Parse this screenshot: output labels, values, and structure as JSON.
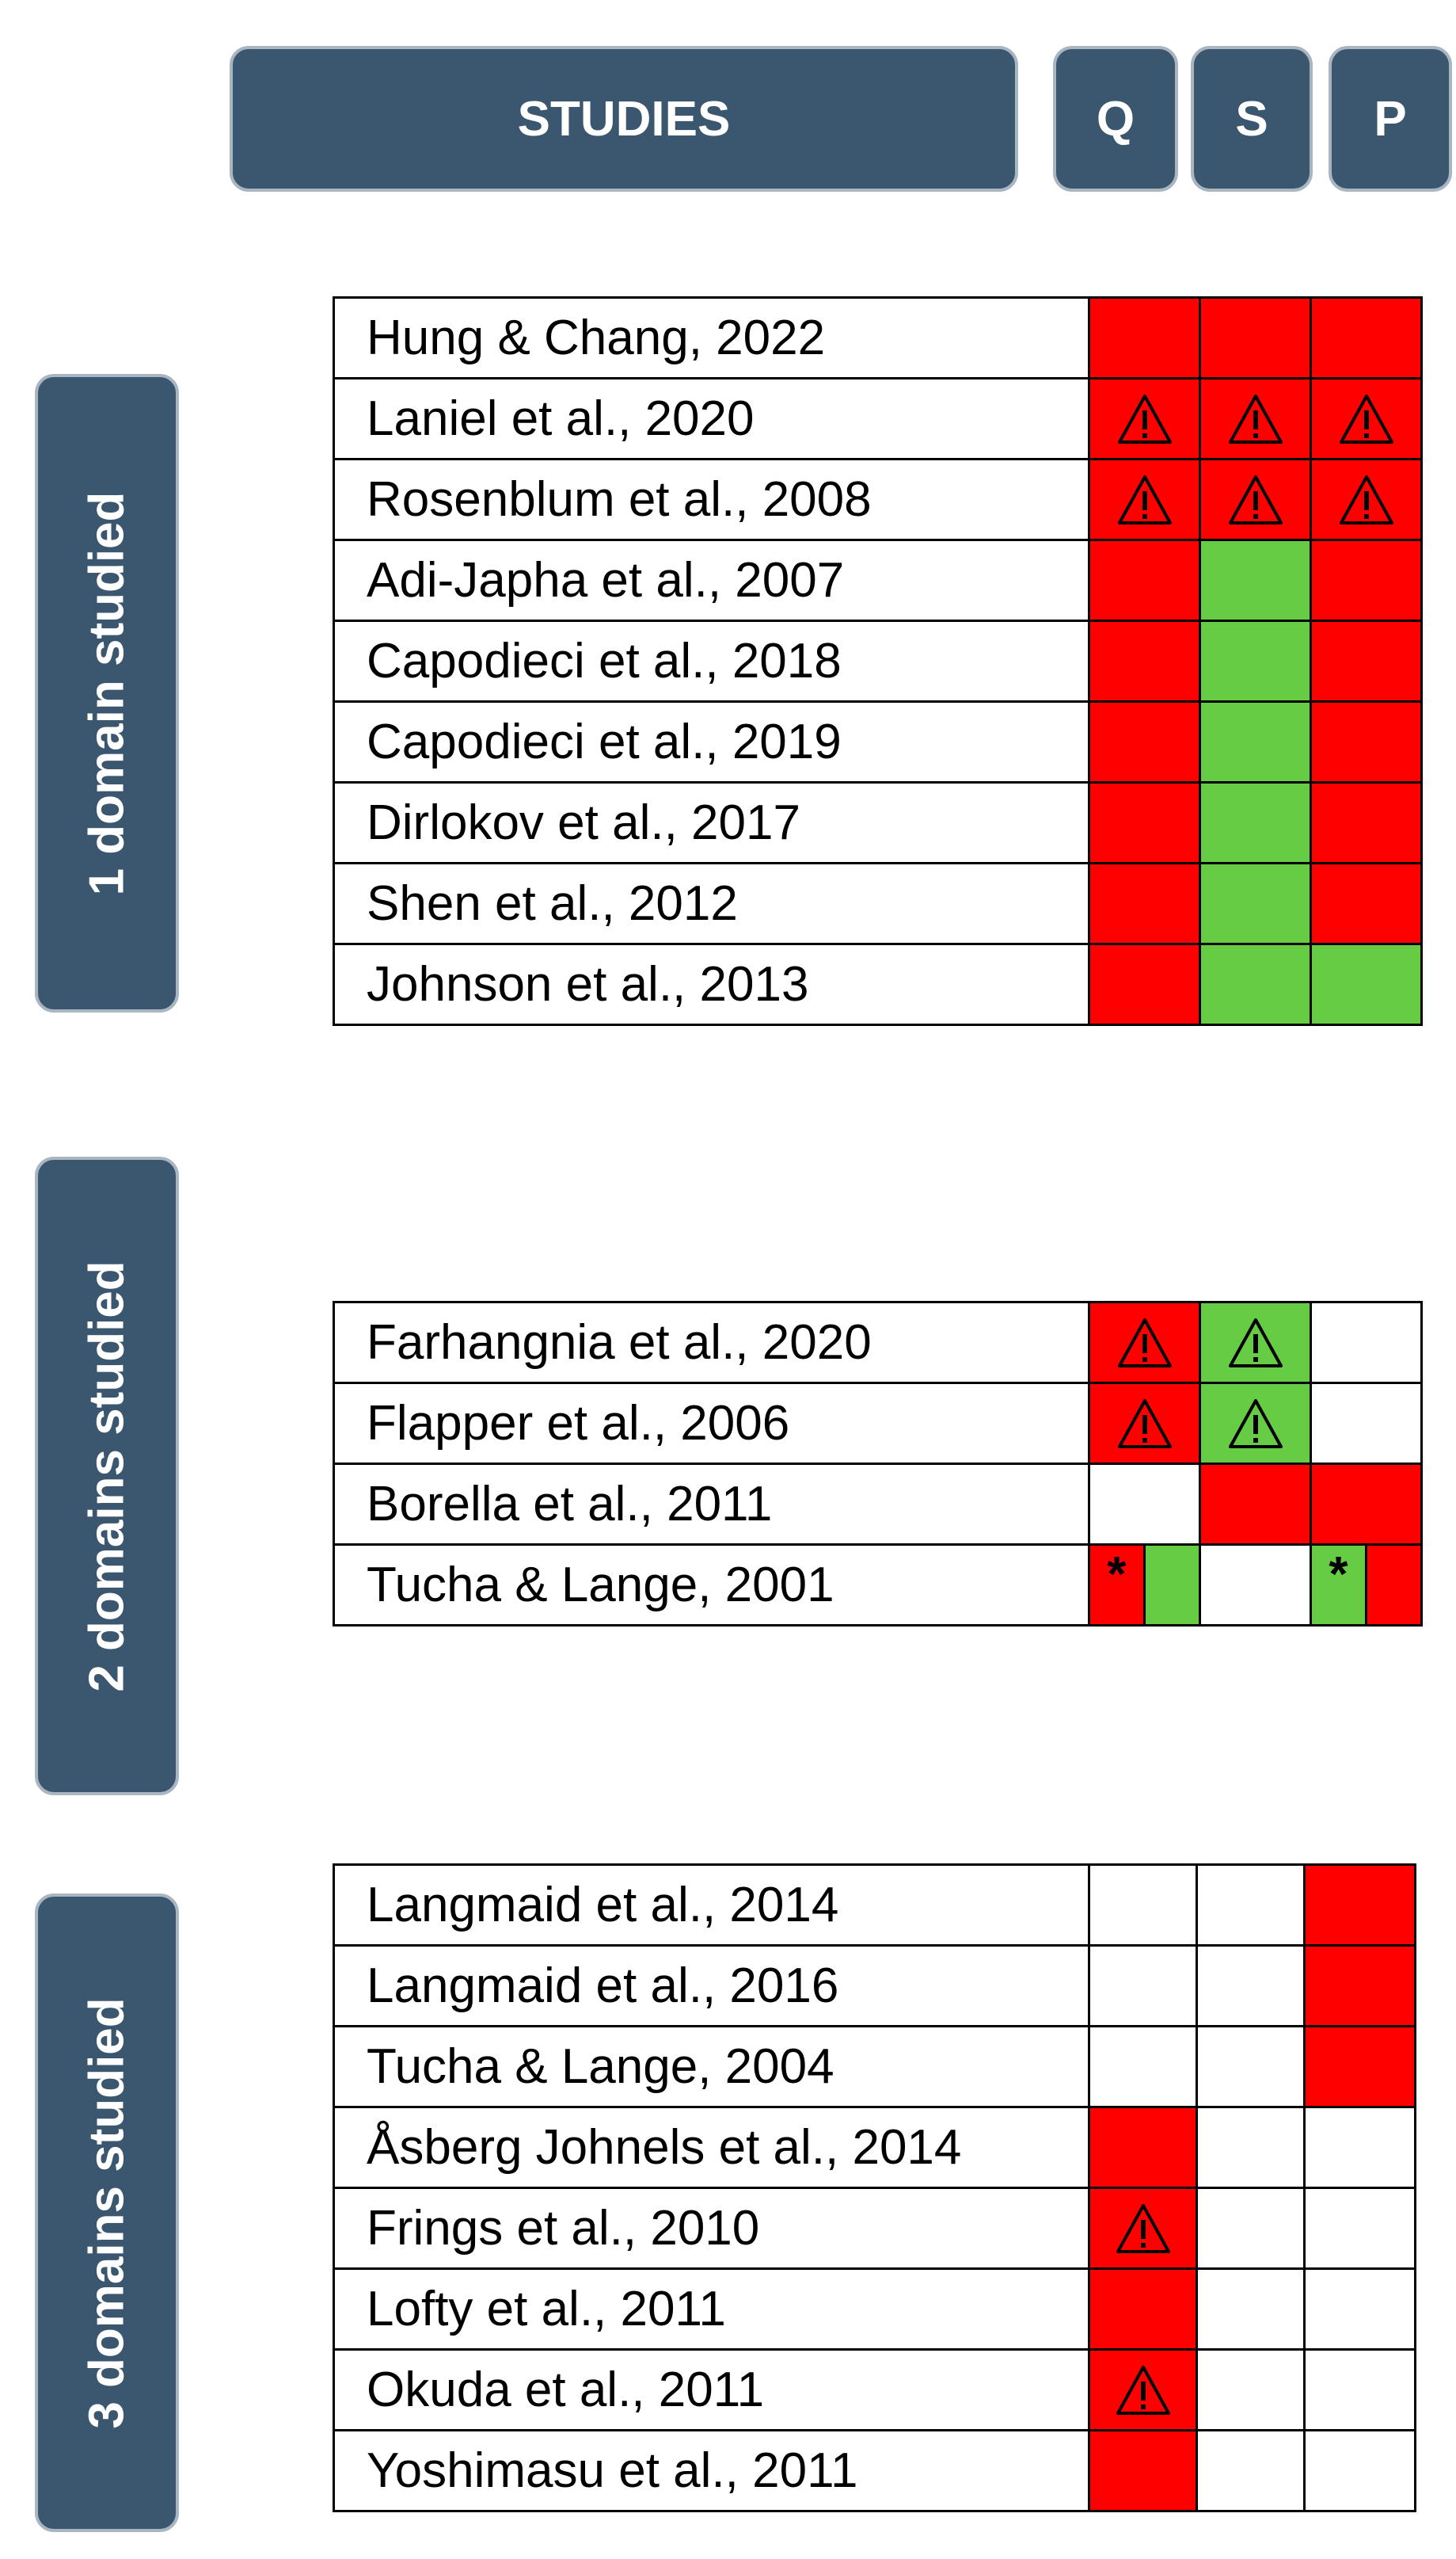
{
  "header": {
    "studies_label": "STUDIES",
    "columns": [
      "Q",
      "S",
      "P"
    ]
  },
  "legend_colors": {
    "red": "#ff0000",
    "green": "#66cc44",
    "white": "#ffffff",
    "pill": "#3b566f"
  },
  "groups": [
    {
      "label": "1 domain studied",
      "rows": [
        {
          "study": "Hung & Chang, 2022",
          "cells": [
            {
              "color": "red"
            },
            {
              "color": "red"
            },
            {
              "color": "red"
            }
          ]
        },
        {
          "study": "Laniel et al., 2020",
          "cells": [
            {
              "color": "red",
              "mark": "warning-icon"
            },
            {
              "color": "red",
              "mark": "warning-icon"
            },
            {
              "color": "red",
              "mark": "warning-icon"
            }
          ]
        },
        {
          "study": "Rosenblum et al., 2008",
          "cells": [
            {
              "color": "red",
              "mark": "warning-icon"
            },
            {
              "color": "red",
              "mark": "warning-icon"
            },
            {
              "color": "red",
              "mark": "warning-icon"
            }
          ]
        },
        {
          "study": "Adi-Japha et al., 2007",
          "cells": [
            {
              "color": "red"
            },
            {
              "color": "green"
            },
            {
              "color": "red"
            }
          ]
        },
        {
          "study": "Capodieci et al., 2018",
          "cells": [
            {
              "color": "red"
            },
            {
              "color": "green"
            },
            {
              "color": "red"
            }
          ]
        },
        {
          "study": "Capodieci et al., 2019",
          "cells": [
            {
              "color": "red"
            },
            {
              "color": "green"
            },
            {
              "color": "red"
            }
          ]
        },
        {
          "study": "Dirlokov et al., 2017",
          "cells": [
            {
              "color": "red"
            },
            {
              "color": "green"
            },
            {
              "color": "red"
            }
          ]
        },
        {
          "study": "Shen et al., 2012",
          "cells": [
            {
              "color": "red"
            },
            {
              "color": "green"
            },
            {
              "color": "red"
            }
          ]
        },
        {
          "study": "Johnson et al., 2013",
          "cells": [
            {
              "color": "red"
            },
            {
              "color": "green"
            },
            {
              "color": "green"
            }
          ]
        }
      ]
    },
    {
      "label": "2 domains studied",
      "rows": [
        {
          "study": "Farhangnia et al., 2020",
          "cells": [
            {
              "color": "red",
              "mark": "warning-icon"
            },
            {
              "color": "green",
              "mark": "warning-icon"
            },
            {
              "color": "white"
            }
          ]
        },
        {
          "study": "Flapper et al., 2006",
          "cells": [
            {
              "color": "red",
              "mark": "warning-icon"
            },
            {
              "color": "green",
              "mark": "warning-icon"
            },
            {
              "color": "white"
            }
          ]
        },
        {
          "study": "Borella et al., 2011",
          "cells": [
            {
              "color": "white"
            },
            {
              "color": "red"
            },
            {
              "color": "red"
            }
          ]
        },
        {
          "study": "Tucha & Lange, 2001",
          "cells": [
            {
              "split": [
                "red",
                "green"
              ],
              "star": "*",
              "star_side": 0
            },
            {
              "color": "white"
            },
            {
              "split": [
                "green",
                "red"
              ],
              "star": "*",
              "star_side": 0
            }
          ]
        }
      ]
    },
    {
      "label": "3 domains studied",
      "rows": [
        {
          "study": "Langmaid et al., 2014",
          "cells": [
            {
              "color": "white"
            },
            {
              "color": "white"
            },
            {
              "color": "red"
            }
          ]
        },
        {
          "study": "Langmaid et al., 2016",
          "cells": [
            {
              "color": "white"
            },
            {
              "color": "white"
            },
            {
              "color": "red"
            }
          ]
        },
        {
          "study": "Tucha & Lange, 2004",
          "cells": [
            {
              "color": "white"
            },
            {
              "color": "white"
            },
            {
              "color": "red"
            }
          ]
        },
        {
          "study": "Åsberg Johnels et al., 2014",
          "cells": [
            {
              "color": "red"
            },
            {
              "color": "white"
            },
            {
              "color": "white"
            }
          ]
        },
        {
          "study": "Frings et al., 2010",
          "cells": [
            {
              "color": "red",
              "mark": "warning-icon"
            },
            {
              "color": "white"
            },
            {
              "color": "white"
            }
          ]
        },
        {
          "study": "Lofty et al., 2011",
          "cells": [
            {
              "color": "red"
            },
            {
              "color": "white"
            },
            {
              "color": "white"
            }
          ]
        },
        {
          "study": "Okuda et al., 2011",
          "cells": [
            {
              "color": "red",
              "mark": "warning-icon"
            },
            {
              "color": "white"
            },
            {
              "color": "white"
            }
          ]
        },
        {
          "study": "Yoshimasu et al., 2011",
          "cells": [
            {
              "color": "red"
            },
            {
              "color": "white"
            },
            {
              "color": "white"
            }
          ]
        }
      ]
    }
  ]
}
